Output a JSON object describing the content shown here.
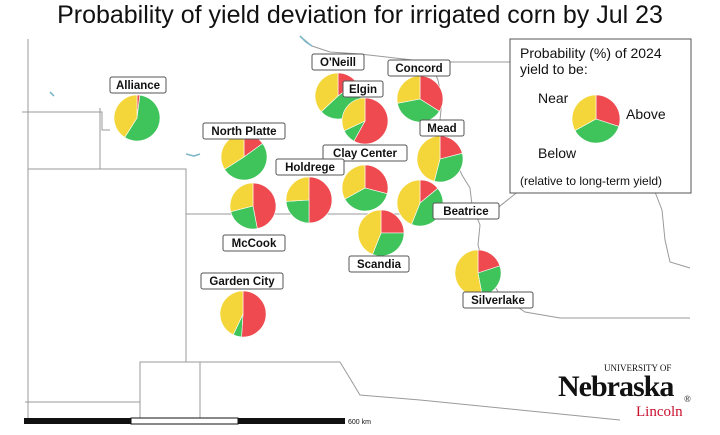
{
  "title": "Probability of yield deviation for irrigated corn by Jul 23",
  "colors": {
    "near": "#f5d63a",
    "above": "#3fc35b",
    "below": "#ee4a4f"
  },
  "legend": {
    "heading_line1": "Probability (%) of 2024",
    "heading_line2": "yield to be:",
    "near_label": "Near",
    "above_label": "Above",
    "below_label": "Below",
    "note": "(relative to long-term yield)"
  },
  "sites": [
    {
      "name": "Alliance",
      "above": 57,
      "below": 2,
      "near": 41
    },
    {
      "name": "O'Neill",
      "above": 48,
      "below": 15,
      "near": 37
    },
    {
      "name": "Elgin",
      "above": 10,
      "below": 58,
      "near": 32
    },
    {
      "name": "Concord",
      "above": 38,
      "below": 34,
      "near": 28
    },
    {
      "name": "North Platte",
      "above": 51,
      "below": 15,
      "near": 34
    },
    {
      "name": "Mead",
      "above": 33,
      "below": 21,
      "near": 46
    },
    {
      "name": "Clay Center",
      "above": 38,
      "below": 29,
      "near": 33
    },
    {
      "name": "Holdrege",
      "above": 24,
      "below": 50,
      "near": 26
    },
    {
      "name": "McCook",
      "above": 24,
      "below": 47,
      "near": 29
    },
    {
      "name": "Beatrice",
      "above": 42,
      "below": 14,
      "near": 44
    },
    {
      "name": "Scandia",
      "above": 31,
      "below": 25,
      "near": 44
    },
    {
      "name": "Silverlake",
      "above": 27,
      "below": 20,
      "near": 53
    },
    {
      "name": "Garden City",
      "above": 6,
      "below": 51,
      "near": 43
    }
  ],
  "scale": {
    "label": "600 km"
  },
  "logo": {
    "university": "UNIVERSITY OF",
    "name": "Nebraska",
    "campus": "Lincoln",
    "mark": "®"
  }
}
